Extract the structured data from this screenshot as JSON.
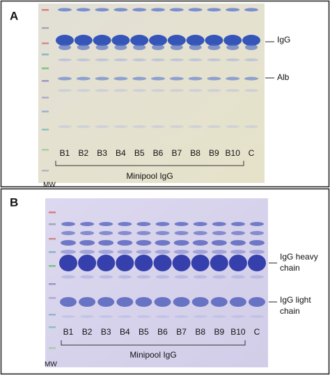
{
  "panels": [
    {
      "label": "A",
      "lanes": [
        "B1",
        "B2",
        "B3",
        "B4",
        "B5",
        "B6",
        "B7",
        "B8",
        "B9",
        "B10",
        "C"
      ],
      "bracket_label": "Minipool IgG",
      "marker_label": "MW",
      "band_labels": [
        [
          "IgG"
        ],
        [
          "Alb"
        ]
      ]
    },
    {
      "label": "B",
      "lanes": [
        "B1",
        "B2",
        "B3",
        "B4",
        "B5",
        "B6",
        "B7",
        "B8",
        "B9",
        "B10",
        "C"
      ],
      "bracket_label": "Minipool IgG",
      "marker_label": "MW",
      "band_labels": [
        [
          "IgG heavy",
          "chain"
        ],
        [
          "IgG light",
          "chain"
        ]
      ]
    }
  ]
}
